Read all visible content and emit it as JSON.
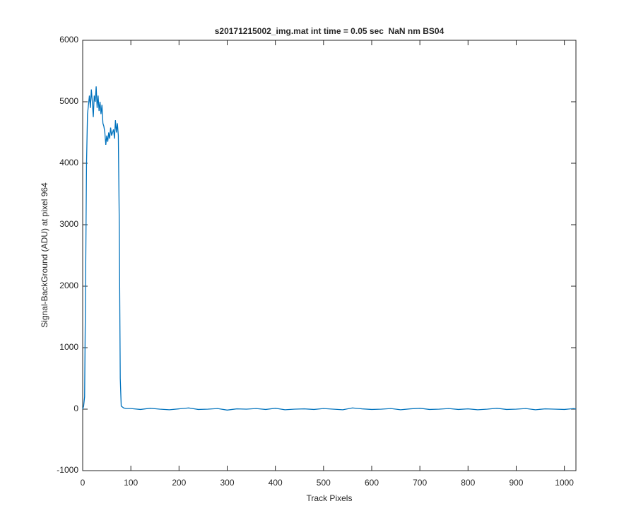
{
  "chart_data": {
    "type": "line",
    "title": "s20171215002_img.mat int time = 0.05 sec  NaN nm BS04",
    "xlabel": "Track Pixels",
    "ylabel": "Signal-BackGround (ADU) at pixel 964",
    "color": "#0072bd",
    "x": [
      0,
      2,
      4,
      6,
      8,
      10,
      12,
      14,
      16,
      18,
      20,
      22,
      24,
      26,
      28,
      30,
      32,
      34,
      36,
      38,
      40,
      42,
      44,
      46,
      48,
      50,
      52,
      54,
      56,
      58,
      60,
      62,
      64,
      66,
      68,
      70,
      72,
      74,
      76,
      78,
      80,
      85,
      90,
      100,
      120,
      140,
      160,
      180,
      200,
      220,
      240,
      260,
      280,
      300,
      320,
      340,
      360,
      380,
      400,
      420,
      440,
      460,
      480,
      500,
      520,
      540,
      560,
      580,
      600,
      620,
      640,
      660,
      680,
      700,
      720,
      740,
      760,
      780,
      800,
      820,
      840,
      860,
      880,
      900,
      920,
      940,
      960,
      980,
      1000,
      1020,
      1024
    ],
    "values": [
      0,
      50,
      200,
      2000,
      4000,
      4800,
      4950,
      5100,
      4900,
      5200,
      5000,
      4750,
      5100,
      5000,
      5250,
      4900,
      5100,
      4850,
      5000,
      4800,
      4950,
      4650,
      4600,
      4500,
      4300,
      4450,
      4350,
      4500,
      4400,
      4580,
      4450,
      4500,
      4550,
      4400,
      4700,
      4500,
      4650,
      4450,
      3000,
      500,
      50,
      20,
      10,
      10,
      -5,
      15,
      0,
      -10,
      5,
      20,
      -5,
      0,
      10,
      -15,
      5,
      0,
      10,
      -5,
      15,
      -10,
      0,
      5,
      -5,
      10,
      0,
      -10,
      20,
      5,
      -5,
      0,
      10,
      -10,
      5,
      15,
      -5,
      0,
      10,
      -5,
      5,
      -10,
      0,
      15,
      -5,
      0,
      10,
      -10,
      5,
      0,
      -5,
      10,
      0
    ],
    "xlim": [
      0,
      1024
    ],
    "ylim": [
      -1000,
      6000
    ],
    "xticks": [
      0,
      100,
      200,
      300,
      400,
      500,
      600,
      700,
      800,
      900,
      1000
    ],
    "yticks": [
      -1000,
      0,
      1000,
      2000,
      3000,
      4000,
      5000,
      6000
    ]
  }
}
